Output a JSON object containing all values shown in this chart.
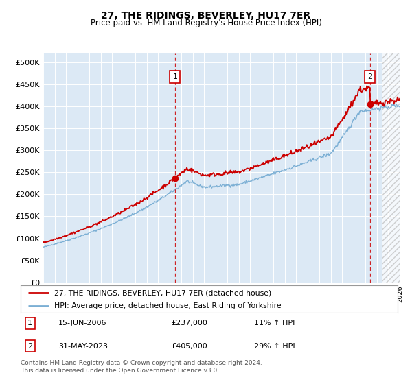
{
  "title": "27, THE RIDINGS, BEVERLEY, HU17 7ER",
  "subtitle": "Price paid vs. HM Land Registry's House Price Index (HPI)",
  "ylim": [
    0,
    520000
  ],
  "yticks": [
    0,
    50000,
    100000,
    150000,
    200000,
    250000,
    300000,
    350000,
    400000,
    450000,
    500000
  ],
  "ytick_labels": [
    "£0",
    "£50K",
    "£100K",
    "£150K",
    "£200K",
    "£250K",
    "£300K",
    "£350K",
    "£400K",
    "£450K",
    "£500K"
  ],
  "background_color": "#dce9f5",
  "line1_color": "#cc0000",
  "line2_color": "#7bafd4",
  "ann1_x": 2006.46,
  "ann1_y": 237000,
  "ann2_x": 2023.42,
  "ann2_y": 405000,
  "legend_line1": "27, THE RIDINGS, BEVERLEY, HU17 7ER (detached house)",
  "legend_line2": "HPI: Average price, detached house, East Riding of Yorkshire",
  "note1_label": "1",
  "note1_date": "15-JUN-2006",
  "note1_price": "£237,000",
  "note1_hpi": "11% ↑ HPI",
  "note2_label": "2",
  "note2_date": "31-MAY-2023",
  "note2_price": "£405,000",
  "note2_hpi": "29% ↑ HPI",
  "footer": "Contains HM Land Registry data © Crown copyright and database right 2024.\nThis data is licensed under the Open Government Licence v3.0.",
  "xmin": 1995,
  "xmax": 2026,
  "hatch_start": 2024.5
}
